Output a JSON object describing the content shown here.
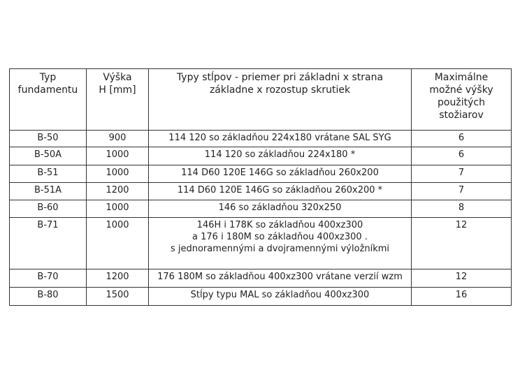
{
  "table": {
    "header": [
      [
        "Typ",
        "fundamentu"
      ],
      [
        "Výška",
        "H [mm]"
      ],
      [
        "Typy stĺpov - priemer pri základni x strana",
        "základne x rozostup skrutiek"
      ],
      [
        "Maximálne",
        "možné výšky",
        "použitých",
        "stožiarov"
      ]
    ],
    "rows": [
      [
        "B-50",
        "900",
        [
          "114 120 so základňou 224x180 vrátane SAL SYG"
        ],
        "6"
      ],
      [
        "B-50A",
        "1000",
        [
          "114 120 so základňou 224x180  *"
        ],
        "6"
      ],
      [
        "B-51",
        "1000",
        [
          "114 D60 120E 146G so základňou 260x200"
        ],
        "7"
      ],
      [
        "B-51A",
        "1200",
        [
          "114 D60 120E 146G so základňou 260x200  *"
        ],
        "7"
      ],
      [
        "B-60",
        "1000",
        [
          "146 so základňou 320x250"
        ],
        "8"
      ],
      [
        "B-71",
        "1000",
        [
          "146H i 178K so základňou 400xz300",
          "a  176 i 180M so základňou 400xz300 .",
          "s jednoramennými a dvojramennými výložníkmi"
        ],
        "12"
      ],
      [
        "B-70",
        "1200",
        [
          "176 180M so základňou 400xz300  vrátane verzií  wzm"
        ],
        "12"
      ],
      [
        "B-80",
        "1500",
        [
          "Stĺpy typu MAL so základňou 400xz300"
        ],
        "16"
      ]
    ]
  }
}
